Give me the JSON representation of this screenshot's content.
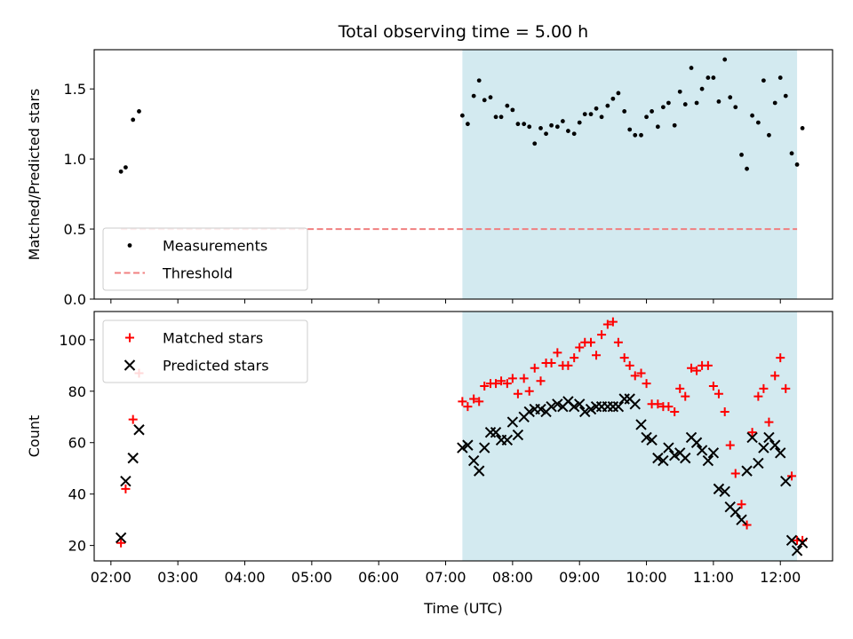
{
  "chart_data": [
    {
      "type": "scatter",
      "panel": "top",
      "title": "Total observing time = 5.00 h",
      "xlabel": "",
      "ylabel": "Matched/Predicted stars",
      "ylim": [
        0,
        1.78
      ],
      "yticks": [
        0.0,
        0.5,
        1.0,
        1.5
      ],
      "ytick_labels": [
        "0.0",
        "0.5",
        "1.0",
        "1.5"
      ],
      "xlim": [
        1.75,
        12.78
      ],
      "xticks": [
        2,
        3,
        4,
        5,
        6,
        7,
        8,
        9,
        10,
        11,
        12
      ],
      "xtick_labels": [],
      "observing_window": [
        7.25,
        12.25
      ],
      "window_color": "#d3eaf0",
      "legend_position": "lower left",
      "legend": [
        {
          "label": "Measurements",
          "marker": "dot",
          "color": "#000000"
        },
        {
          "label": "Threshold",
          "marker": "dashed-line",
          "color": "#f08080"
        }
      ],
      "threshold": {
        "value": 0.5,
        "x_range": [
          2.15,
          12.25
        ]
      },
      "series": [
        {
          "name": "Measurements",
          "color": "#000000",
          "points": [
            [
              2.15,
              0.91
            ],
            [
              2.22,
              0.94
            ],
            [
              2.33,
              1.28
            ],
            [
              2.42,
              1.34
            ],
            [
              7.25,
              1.31
            ],
            [
              7.33,
              1.25
            ],
            [
              7.42,
              1.45
            ],
            [
              7.5,
              1.56
            ],
            [
              7.58,
              1.42
            ],
            [
              7.67,
              1.44
            ],
            [
              7.75,
              1.3
            ],
            [
              7.83,
              1.3
            ],
            [
              7.92,
              1.38
            ],
            [
              8.0,
              1.35
            ],
            [
              8.08,
              1.25
            ],
            [
              8.17,
              1.25
            ],
            [
              8.25,
              1.23
            ],
            [
              8.33,
              1.11
            ],
            [
              8.42,
              1.22
            ],
            [
              8.5,
              1.18
            ],
            [
              8.58,
              1.24
            ],
            [
              8.67,
              1.23
            ],
            [
              8.75,
              1.27
            ],
            [
              8.83,
              1.2
            ],
            [
              8.92,
              1.18
            ],
            [
              9.0,
              1.26
            ],
            [
              9.08,
              1.32
            ],
            [
              9.17,
              1.32
            ],
            [
              9.25,
              1.36
            ],
            [
              9.33,
              1.3
            ],
            [
              9.42,
              1.38
            ],
            [
              9.5,
              1.43
            ],
            [
              9.58,
              1.47
            ],
            [
              9.67,
              1.34
            ],
            [
              9.75,
              1.21
            ],
            [
              9.83,
              1.17
            ],
            [
              9.92,
              1.17
            ],
            [
              10.0,
              1.3
            ],
            [
              10.08,
              1.34
            ],
            [
              10.17,
              1.23
            ],
            [
              10.25,
              1.37
            ],
            [
              10.33,
              1.4
            ],
            [
              10.42,
              1.24
            ],
            [
              10.5,
              1.48
            ],
            [
              10.58,
              1.39
            ],
            [
              10.67,
              1.65
            ],
            [
              10.75,
              1.4
            ],
            [
              10.83,
              1.5
            ],
            [
              10.92,
              1.58
            ],
            [
              11.0,
              1.58
            ],
            [
              11.08,
              1.41
            ],
            [
              11.17,
              1.71
            ],
            [
              11.25,
              1.44
            ],
            [
              11.33,
              1.37
            ],
            [
              11.42,
              1.03
            ],
            [
              11.5,
              0.93
            ],
            [
              11.58,
              1.31
            ],
            [
              11.67,
              1.26
            ],
            [
              11.75,
              1.56
            ],
            [
              11.83,
              1.17
            ],
            [
              11.92,
              1.4
            ],
            [
              12.0,
              1.58
            ],
            [
              12.08,
              1.45
            ],
            [
              12.17,
              1.04
            ],
            [
              12.25,
              0.96
            ],
            [
              12.33,
              1.22
            ]
          ]
        }
      ]
    },
    {
      "type": "scatter",
      "panel": "bottom",
      "title": "",
      "xlabel": "Time (UTC)",
      "ylabel": "Count",
      "ylim": [
        14,
        111
      ],
      "yticks": [
        20,
        40,
        60,
        80,
        100
      ],
      "ytick_labels": [
        "20",
        "40",
        "60",
        "80",
        "100"
      ],
      "xlim": [
        1.75,
        12.78
      ],
      "xticks": [
        2,
        3,
        4,
        5,
        6,
        7,
        8,
        9,
        10,
        11,
        12
      ],
      "xtick_labels": [
        "02:00",
        "03:00",
        "04:00",
        "05:00",
        "06:00",
        "07:00",
        "08:00",
        "09:00",
        "10:00",
        "11:00",
        "12:00"
      ],
      "observing_window": [
        7.25,
        12.25
      ],
      "window_color": "#d3eaf0",
      "legend_position": "upper left",
      "legend": [
        {
          "label": "Matched stars",
          "marker": "plus",
          "color": "#ff0000"
        },
        {
          "label": "Predicted stars",
          "marker": "x",
          "color": "#000000"
        }
      ],
      "series": [
        {
          "name": "Matched stars",
          "color": "#ff0000",
          "points": [
            [
              2.15,
              21
            ],
            [
              2.22,
              42
            ],
            [
              2.33,
              69
            ],
            [
              2.42,
              87
            ],
            [
              7.25,
              76
            ],
            [
              7.33,
              74
            ],
            [
              7.42,
              77
            ],
            [
              7.5,
              76
            ],
            [
              7.58,
              82
            ],
            [
              7.67,
              83
            ],
            [
              7.75,
              83
            ],
            [
              7.83,
              84
            ],
            [
              7.92,
              83
            ],
            [
              8.0,
              85
            ],
            [
              8.08,
              79
            ],
            [
              8.17,
              85
            ],
            [
              8.25,
              80
            ],
            [
              8.33,
              89
            ],
            [
              8.42,
              84
            ],
            [
              8.5,
              91
            ],
            [
              8.58,
              91
            ],
            [
              8.67,
              95
            ],
            [
              8.75,
              90
            ],
            [
              8.83,
              90
            ],
            [
              8.92,
              93
            ],
            [
              9.0,
              97
            ],
            [
              9.08,
              99
            ],
            [
              9.17,
              99
            ],
            [
              9.25,
              94
            ],
            [
              9.33,
              102
            ],
            [
              9.42,
              106
            ],
            [
              9.5,
              107
            ],
            [
              9.58,
              99
            ],
            [
              9.67,
              93
            ],
            [
              9.75,
              90
            ],
            [
              9.83,
              86
            ],
            [
              9.92,
              87
            ],
            [
              10.0,
              83
            ],
            [
              10.08,
              75
            ],
            [
              10.17,
              75
            ],
            [
              10.25,
              74
            ],
            [
              10.33,
              74
            ],
            [
              10.42,
              72
            ],
            [
              10.5,
              81
            ],
            [
              10.58,
              78
            ],
            [
              10.67,
              89
            ],
            [
              10.75,
              88
            ],
            [
              10.83,
              90
            ],
            [
              10.92,
              90
            ],
            [
              11.0,
              82
            ],
            [
              11.08,
              79
            ],
            [
              11.17,
              72
            ],
            [
              11.25,
              59
            ],
            [
              11.33,
              48
            ],
            [
              11.42,
              36
            ],
            [
              11.5,
              28
            ],
            [
              11.58,
              64
            ],
            [
              11.67,
              78
            ],
            [
              11.75,
              81
            ],
            [
              11.83,
              68
            ],
            [
              11.92,
              86
            ],
            [
              12.0,
              93
            ],
            [
              12.08,
              81
            ],
            [
              12.17,
              47
            ],
            [
              12.25,
              22
            ],
            [
              12.33,
              22
            ]
          ]
        },
        {
          "name": "Predicted stars",
          "color": "#000000",
          "points": [
            [
              2.15,
              23
            ],
            [
              2.22,
              45
            ],
            [
              2.33,
              54
            ],
            [
              2.42,
              65
            ],
            [
              7.25,
              58
            ],
            [
              7.33,
              59
            ],
            [
              7.42,
              53
            ],
            [
              7.5,
              49
            ],
            [
              7.58,
              58
            ],
            [
              7.67,
              64
            ],
            [
              7.75,
              64
            ],
            [
              7.83,
              61
            ],
            [
              7.92,
              61
            ],
            [
              8.0,
              68
            ],
            [
              8.08,
              63
            ],
            [
              8.17,
              70
            ],
            [
              8.25,
              72
            ],
            [
              8.33,
              73
            ],
            [
              8.42,
              73
            ],
            [
              8.5,
              72
            ],
            [
              8.58,
              74
            ],
            [
              8.67,
              75
            ],
            [
              8.75,
              74
            ],
            [
              8.83,
              76
            ],
            [
              8.92,
              74
            ],
            [
              9.0,
              75
            ],
            [
              9.08,
              72
            ],
            [
              9.17,
              73
            ],
            [
              9.25,
              74
            ],
            [
              9.33,
              74
            ],
            [
              9.42,
              74
            ],
            [
              9.5,
              74
            ],
            [
              9.58,
              74
            ],
            [
              9.67,
              77
            ],
            [
              9.75,
              77
            ],
            [
              9.83,
              75
            ],
            [
              9.92,
              67
            ],
            [
              10.0,
              62
            ],
            [
              10.08,
              61
            ],
            [
              10.17,
              54
            ],
            [
              10.25,
              53
            ],
            [
              10.33,
              58
            ],
            [
              10.42,
              55
            ],
            [
              10.5,
              56
            ],
            [
              10.58,
              54
            ],
            [
              10.67,
              62
            ],
            [
              10.75,
              60
            ],
            [
              10.83,
              57
            ],
            [
              10.92,
              53
            ],
            [
              11.0,
              56
            ],
            [
              11.08,
              42
            ],
            [
              11.17,
              41
            ],
            [
              11.25,
              35
            ],
            [
              11.33,
              33
            ],
            [
              11.42,
              30
            ],
            [
              11.5,
              49
            ],
            [
              11.58,
              62
            ],
            [
              11.67,
              52
            ],
            [
              11.75,
              58
            ],
            [
              11.83,
              62
            ],
            [
              11.92,
              59
            ],
            [
              12.0,
              56
            ],
            [
              12.08,
              45
            ],
            [
              12.17,
              22
            ],
            [
              12.25,
              18
            ],
            [
              12.33,
              21
            ]
          ]
        }
      ]
    }
  ]
}
